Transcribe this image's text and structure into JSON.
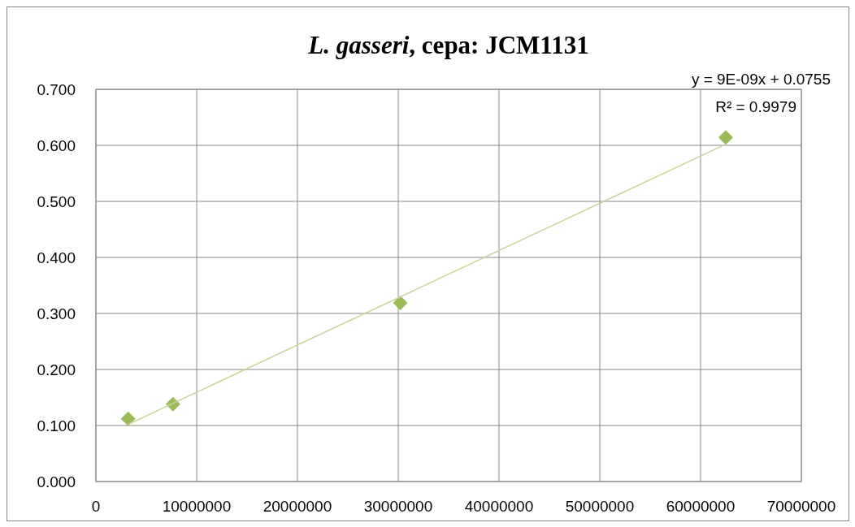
{
  "chart_data": {
    "type": "scatter",
    "title": "L. gasseri, cepa: JCM1131",
    "xlim": [
      0,
      70000000
    ],
    "xticks": [
      0,
      10000000,
      20000000,
      30000000,
      40000000,
      50000000,
      60000000,
      70000000
    ],
    "ylim": [
      0,
      0.7
    ],
    "yticks": [
      {
        "value": 0,
        "label": "0.000"
      },
      {
        "value": 0.1,
        "label": "0.100"
      },
      {
        "value": 0.2,
        "label": "0.200"
      },
      {
        "value": 0.3,
        "label": "0.300"
      },
      {
        "value": 0.4,
        "label": "0.400"
      },
      {
        "value": 0.5,
        "label": "0.500"
      },
      {
        "value": 0.6,
        "label": "0.600"
      },
      {
        "value": 0.7,
        "label": "0.700"
      }
    ],
    "grid": true,
    "series": [
      {
        "color": "#9bbb59",
        "marker": "diamond",
        "x": [
          3200000,
          7650000,
          30200000,
          62500000
        ],
        "values": [
          0.112,
          0.138,
          0.319,
          0.614
        ]
      },
      {
        "type": "line",
        "color": "#c3d69b",
        "x": [
          3200000,
          62500000
        ],
        "values": [
          0.102,
          0.602
        ]
      }
    ],
    "annotations": [
      "y = 9E-09x + 0.0755",
      "R² = 0.9979"
    ]
  }
}
